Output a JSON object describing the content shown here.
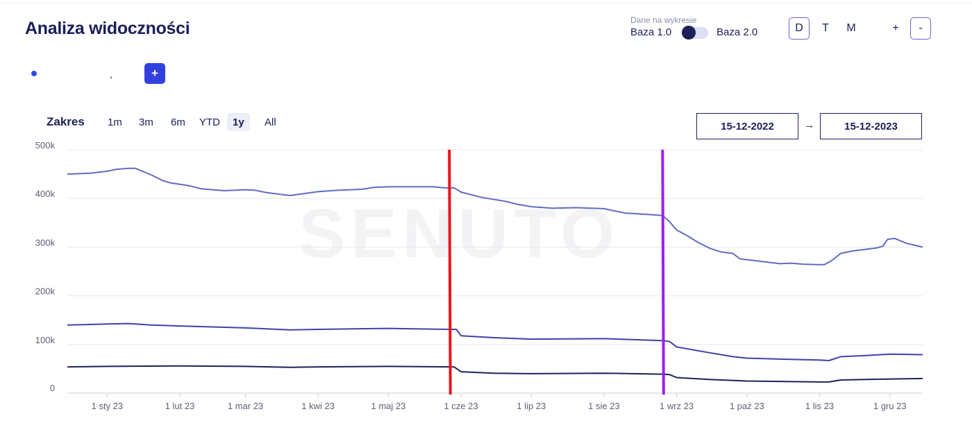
{
  "header": {
    "title": "Analiza widoczności",
    "data_source_caption": "Dane na wykresie",
    "base_left": "Baza 1.0",
    "base_right": "Baza 2.0",
    "interval_buttons": [
      "D",
      "T",
      "M"
    ],
    "zoom_in": "+",
    "zoom_out": "-"
  },
  "legend": {
    "add_button": "+",
    "comma": ","
  },
  "range": {
    "label": "Zakres",
    "options": [
      "1m",
      "3m",
      "6m",
      "YTD",
      "1y",
      "All"
    ],
    "active": "1y",
    "date_from": "15-12-2022",
    "arrow": "→",
    "date_to": "15-12-2023"
  },
  "watermark": "SENUTO",
  "chart_data": {
    "type": "line",
    "ylim": [
      0,
      500000
    ],
    "y_ticks": [
      0,
      100000,
      200000,
      300000,
      400000,
      500000
    ],
    "y_tick_labels": [
      "0",
      "100k",
      "200k",
      "300k",
      "400k",
      "500k"
    ],
    "x_range": [
      "2022-12-15",
      "2023-12-15"
    ],
    "x_ticks": [
      "2023-01-01",
      "2023-02-01",
      "2023-03-01",
      "2023-04-01",
      "2023-05-01",
      "2023-06-01",
      "2023-07-01",
      "2023-08-01",
      "2023-09-01",
      "2023-10-01",
      "2023-11-01",
      "2023-12-01"
    ],
    "x_tick_labels": [
      "1 sty 23",
      "1 lut 23",
      "1 mar 23",
      "1 kwi 23",
      "1 maj 23",
      "1 cze 23",
      "1 lip 23",
      "1 sie 23",
      "1 wrz 23",
      "1 paź 23",
      "1 lis 23",
      "1 gru 23"
    ],
    "grid": true,
    "markers": [
      {
        "date": "2023-05-27",
        "color": "#e8141c"
      },
      {
        "date": "2023-08-26",
        "color": "#9b1ff0"
      }
    ],
    "series": [
      {
        "color": "#5d6cc4",
        "points": [
          [
            "2022-12-15",
            450000
          ],
          [
            "2022-12-25",
            452000
          ],
          [
            "2023-01-01",
            456000
          ],
          [
            "2023-01-05",
            460000
          ],
          [
            "2023-01-10",
            462000
          ],
          [
            "2023-01-13",
            462000
          ],
          [
            "2023-01-20",
            448000
          ],
          [
            "2023-01-25",
            436000
          ],
          [
            "2023-01-28",
            432000
          ],
          [
            "2023-02-05",
            426000
          ],
          [
            "2023-02-10",
            420000
          ],
          [
            "2023-02-20",
            416000
          ],
          [
            "2023-03-01",
            418000
          ],
          [
            "2023-03-05",
            417000
          ],
          [
            "2023-03-10",
            412000
          ],
          [
            "2023-03-20",
            406000
          ],
          [
            "2023-04-01",
            414000
          ],
          [
            "2023-04-10",
            417000
          ],
          [
            "2023-04-20",
            419000
          ],
          [
            "2023-04-25",
            423000
          ],
          [
            "2023-05-01",
            424000
          ],
          [
            "2023-05-15",
            424000
          ],
          [
            "2023-05-20",
            424000
          ],
          [
            "2023-05-27",
            421000
          ],
          [
            "2023-05-29",
            422000
          ],
          [
            "2023-06-01",
            413000
          ],
          [
            "2023-06-10",
            402000
          ],
          [
            "2023-06-20",
            394000
          ],
          [
            "2023-06-25",
            388000
          ],
          [
            "2023-07-01",
            383000
          ],
          [
            "2023-07-10",
            380000
          ],
          [
            "2023-07-20",
            381000
          ],
          [
            "2023-08-01",
            379000
          ],
          [
            "2023-08-06",
            374000
          ],
          [
            "2023-08-10",
            370000
          ],
          [
            "2023-08-20",
            367000
          ],
          [
            "2023-08-26",
            365000
          ],
          [
            "2023-08-29",
            352000
          ],
          [
            "2023-09-01",
            335000
          ],
          [
            "2023-09-05",
            325000
          ],
          [
            "2023-09-10",
            310000
          ],
          [
            "2023-09-15",
            298000
          ],
          [
            "2023-09-20",
            290000
          ],
          [
            "2023-09-25",
            287000
          ],
          [
            "2023-09-28",
            276000
          ],
          [
            "2023-10-05",
            272000
          ],
          [
            "2023-10-15",
            266000
          ],
          [
            "2023-10-20",
            267000
          ],
          [
            "2023-10-25",
            265000
          ],
          [
            "2023-11-01",
            264000
          ],
          [
            "2023-11-03",
            264000
          ],
          [
            "2023-11-06",
            272000
          ],
          [
            "2023-11-10",
            287000
          ],
          [
            "2023-11-15",
            292000
          ],
          [
            "2023-11-20",
            295000
          ],
          [
            "2023-11-25",
            298000
          ],
          [
            "2023-11-28",
            302000
          ],
          [
            "2023-11-30",
            316000
          ],
          [
            "2023-12-03",
            318000
          ],
          [
            "2023-12-08",
            308000
          ],
          [
            "2023-12-15",
            300000
          ]
        ]
      },
      {
        "color": "#3a43a6",
        "points": [
          [
            "2022-12-15",
            140000
          ],
          [
            "2023-01-01",
            142000
          ],
          [
            "2023-01-10",
            143000
          ],
          [
            "2023-01-20",
            140000
          ],
          [
            "2023-02-01",
            138000
          ],
          [
            "2023-03-01",
            134000
          ],
          [
            "2023-03-20",
            130000
          ],
          [
            "2023-04-01",
            131000
          ],
          [
            "2023-05-01",
            133000
          ],
          [
            "2023-05-27",
            131000
          ],
          [
            "2023-05-30",
            131000
          ],
          [
            "2023-06-01",
            118000
          ],
          [
            "2023-06-15",
            114000
          ],
          [
            "2023-07-01",
            111000
          ],
          [
            "2023-08-01",
            112000
          ],
          [
            "2023-08-26",
            108000
          ],
          [
            "2023-08-29",
            106000
          ],
          [
            "2023-09-01",
            95000
          ],
          [
            "2023-09-15",
            83000
          ],
          [
            "2023-09-25",
            75000
          ],
          [
            "2023-10-01",
            72000
          ],
          [
            "2023-10-15",
            70000
          ],
          [
            "2023-11-01",
            68000
          ],
          [
            "2023-11-05",
            67000
          ],
          [
            "2023-11-10",
            75000
          ],
          [
            "2023-11-20",
            77000
          ],
          [
            "2023-12-01",
            80000
          ],
          [
            "2023-12-15",
            79000
          ]
        ]
      },
      {
        "color": "#1d2158",
        "points": [
          [
            "2022-12-15",
            54000
          ],
          [
            "2023-01-01",
            55000
          ],
          [
            "2023-02-01",
            56000
          ],
          [
            "2023-03-01",
            55000
          ],
          [
            "2023-03-20",
            53000
          ],
          [
            "2023-04-01",
            54000
          ],
          [
            "2023-05-01",
            55000
          ],
          [
            "2023-05-27",
            54000
          ],
          [
            "2023-05-29",
            54000
          ],
          [
            "2023-06-01",
            44000
          ],
          [
            "2023-06-15",
            41000
          ],
          [
            "2023-07-01",
            40000
          ],
          [
            "2023-08-01",
            41000
          ],
          [
            "2023-08-26",
            39000
          ],
          [
            "2023-08-29",
            38000
          ],
          [
            "2023-09-01",
            32000
          ],
          [
            "2023-09-15",
            28000
          ],
          [
            "2023-10-01",
            25000
          ],
          [
            "2023-11-01",
            23000
          ],
          [
            "2023-11-05",
            23000
          ],
          [
            "2023-11-10",
            27000
          ],
          [
            "2023-12-01",
            29000
          ],
          [
            "2023-12-15",
            30000
          ]
        ]
      }
    ]
  }
}
